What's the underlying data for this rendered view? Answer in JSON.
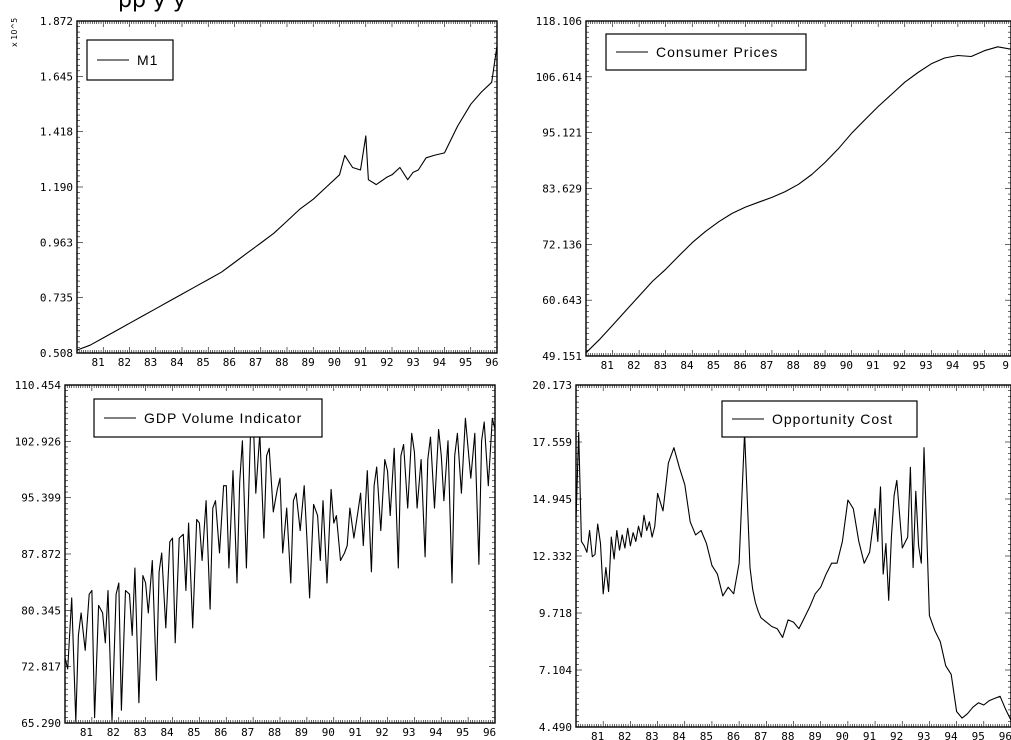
{
  "page": {
    "title_fragment": "pp        y           y"
  },
  "chart_data": [
    {
      "type": "line",
      "legend": "M1",
      "legend_position": "top-left",
      "scale_label": "x 10^5",
      "ylim": [
        0.508,
        1.872
      ],
      "ytick_labels": [
        "1.872",
        "1.645",
        "1.418",
        "1.190",
        "0.963",
        "0.735",
        "0.508"
      ],
      "xlim": [
        1980.0,
        1996.0
      ],
      "xtick_labels": [
        "81",
        "82",
        "83",
        "84",
        "85",
        "86",
        "87",
        "88",
        "89",
        "90",
        "91",
        "92",
        "93",
        "94",
        "95",
        "96"
      ],
      "series": [
        {
          "x": [
            1980.0,
            1980.5,
            1981.0,
            1981.5,
            1982.0,
            1982.5,
            1983.0,
            1983.5,
            1984.0,
            1984.5,
            1985.0,
            1985.5,
            1986.0,
            1986.5,
            1987.0,
            1987.5,
            1988.0,
            1988.5,
            1989.0,
            1989.5,
            1990.0,
            1990.2,
            1990.5,
            1990.8,
            1991.0,
            1991.1,
            1991.4,
            1991.8,
            1992.0,
            1992.3,
            1992.6,
            1992.8,
            1993.0,
            1993.3,
            1993.6,
            1994.0,
            1994.5,
            1995.0,
            1995.4,
            1995.8,
            1996.0
          ],
          "values": [
            0.52,
            0.54,
            0.57,
            0.6,
            0.63,
            0.66,
            0.69,
            0.72,
            0.75,
            0.78,
            0.81,
            0.84,
            0.88,
            0.92,
            0.96,
            1.0,
            1.05,
            1.1,
            1.14,
            1.19,
            1.24,
            1.32,
            1.27,
            1.26,
            1.4,
            1.22,
            1.2,
            1.23,
            1.24,
            1.27,
            1.22,
            1.25,
            1.26,
            1.31,
            1.32,
            1.33,
            1.44,
            1.53,
            1.58,
            1.62,
            1.77
          ]
        }
      ]
    },
    {
      "type": "line",
      "legend": "Consumer Prices",
      "legend_position": "top-right",
      "ylim": [
        49.151,
        118.106
      ],
      "ytick_labels": [
        "118.106",
        "106.614",
        "95.121",
        "83.629",
        "72.136",
        "60.643",
        "49.151"
      ],
      "xlim": [
        1980.0,
        1996.0
      ],
      "xtick_labels": [
        "81",
        "82",
        "83",
        "84",
        "85",
        "86",
        "87",
        "88",
        "89",
        "90",
        "91",
        "92",
        "93",
        "94",
        "95",
        "9"
      ],
      "series": [
        {
          "x": [
            1980.0,
            1980.5,
            1981.0,
            1981.5,
            1982.0,
            1982.5,
            1983.0,
            1983.5,
            1984.0,
            1984.5,
            1985.0,
            1985.5,
            1986.0,
            1986.5,
            1987.0,
            1987.5,
            1988.0,
            1988.5,
            1989.0,
            1989.5,
            1990.0,
            1990.5,
            1991.0,
            1991.5,
            1992.0,
            1992.5,
            1993.0,
            1993.5,
            1994.0,
            1994.5,
            1995.0,
            1995.5,
            1996.0
          ],
          "values": [
            49.8,
            52.5,
            55.5,
            58.5,
            61.5,
            64.5,
            67.0,
            69.8,
            72.5,
            74.8,
            76.8,
            78.5,
            79.8,
            80.8,
            81.8,
            83.0,
            84.5,
            86.5,
            89.0,
            91.8,
            95.0,
            97.8,
            100.5,
            103.0,
            105.5,
            107.5,
            109.3,
            110.5,
            111.0,
            110.8,
            112.0,
            112.8,
            112.3
          ]
        }
      ]
    },
    {
      "type": "line",
      "legend": "GDP Volume Indicator",
      "legend_position": "top-left",
      "ylim": [
        65.29,
        110.454
      ],
      "ytick_labels": [
        "110.454",
        "102.926",
        "95.399",
        "87.872",
        "80.345",
        "72.817",
        "65.290"
      ],
      "xlim": [
        1980.0,
        1996.0
      ],
      "xtick_labels": [
        "81",
        "82",
        "83",
        "84",
        "85",
        "86",
        "87",
        "88",
        "89",
        "90",
        "91",
        "92",
        "93",
        "94",
        "95",
        "96"
      ],
      "series": [
        {
          "x": [
            1980.0,
            1980.1,
            1980.25,
            1980.4,
            1980.5,
            1980.6,
            1980.75,
            1980.9,
            1981.0,
            1981.1,
            1981.25,
            1981.4,
            1981.5,
            1981.6,
            1981.75,
            1981.9,
            1982.0,
            1982.1,
            1982.25,
            1982.4,
            1982.5,
            1982.6,
            1982.75,
            1982.9,
            1983.0,
            1983.1,
            1983.25,
            1983.4,
            1983.5,
            1983.6,
            1983.75,
            1983.9,
            1984.0,
            1984.1,
            1984.25,
            1984.4,
            1984.5,
            1984.6,
            1984.75,
            1984.9,
            1985.0,
            1985.1,
            1985.25,
            1985.4,
            1985.5,
            1985.6,
            1985.75,
            1985.9,
            1986.0,
            1986.1,
            1986.25,
            1986.4,
            1986.5,
            1986.6,
            1986.75,
            1986.9,
            1987.0,
            1987.1,
            1987.25,
            1987.4,
            1987.5,
            1987.6,
            1987.75,
            1987.9,
            1988.0,
            1988.1,
            1988.25,
            1988.4,
            1988.5,
            1988.6,
            1988.75,
            1988.9,
            1989.0,
            1989.1,
            1989.25,
            1989.4,
            1989.5,
            1989.6,
            1989.75,
            1989.9,
            1990.0,
            1990.1,
            1990.25,
            1990.4,
            1990.5,
            1990.6,
            1990.75,
            1990.9,
            1991.0,
            1991.1,
            1991.25,
            1991.4,
            1991.5,
            1991.6,
            1991.75,
            1991.9,
            1992.0,
            1992.1,
            1992.25,
            1992.4,
            1992.5,
            1992.6,
            1992.75,
            1992.9,
            1993.0,
            1993.1,
            1993.25,
            1993.4,
            1993.5,
            1993.6,
            1993.75,
            1993.9,
            1994.0,
            1994.1,
            1994.25,
            1994.4,
            1994.5,
            1994.6,
            1994.75,
            1994.9,
            1995.0,
            1995.1,
            1995.25,
            1995.4,
            1995.5,
            1995.6,
            1995.75,
            1995.9,
            1996.0
          ],
          "values": [
            74.0,
            72.5,
            82.0,
            65.5,
            77.0,
            80.0,
            75.0,
            82.5,
            83.0,
            66.0,
            81.0,
            80.0,
            76.0,
            83.0,
            65.5,
            82.5,
            84.0,
            67.0,
            83.0,
            82.5,
            77.0,
            86.0,
            68.0,
            85.0,
            84.0,
            80.0,
            87.0,
            71.0,
            85.5,
            88.0,
            78.0,
            89.5,
            90.0,
            76.0,
            90.0,
            90.5,
            83.0,
            92.0,
            78.0,
            92.5,
            92.0,
            87.0,
            95.0,
            80.5,
            94.0,
            95.0,
            88.0,
            97.0,
            97.0,
            86.0,
            99.0,
            84.0,
            97.5,
            103.0,
            86.0,
            103.5,
            106.5,
            96.0,
            104.0,
            90.0,
            101.0,
            102.0,
            93.5,
            96.5,
            98.0,
            88.0,
            94.0,
            84.0,
            95.0,
            96.0,
            91.0,
            97.0,
            90.0,
            82.0,
            94.5,
            93.0,
            87.0,
            95.0,
            84.0,
            96.5,
            92.0,
            93.0,
            87.0,
            88.0,
            89.0,
            94.0,
            90.0,
            93.5,
            96.0,
            89.0,
            99.0,
            85.5,
            97.0,
            99.5,
            91.0,
            100.5,
            99.0,
            93.0,
            102.0,
            86.0,
            101.0,
            102.5,
            94.0,
            104.0,
            101.5,
            94.0,
            100.5,
            87.5,
            100.5,
            103.5,
            94.0,
            104.5,
            101.0,
            95.0,
            103.0,
            84.0,
            101.0,
            104.0,
            96.0,
            106.0,
            102.0,
            98.0,
            104.0,
            86.5,
            103.0,
            105.5,
            97.0,
            106.0,
            104.5
          ]
        }
      ]
    },
    {
      "type": "line",
      "legend": "Opportunity Cost",
      "legend_position": "top-right",
      "ylim": [
        4.49,
        20.173
      ],
      "ytick_labels": [
        "20.173",
        "17.559",
        "14.945",
        "12.332",
        "9.718",
        "7.104",
        "4.490"
      ],
      "xlim": [
        1980.0,
        1996.0
      ],
      "xtick_labels": [
        "81",
        "82",
        "83",
        "84",
        "85",
        "86",
        "87",
        "88",
        "89",
        "90",
        "91",
        "92",
        "93",
        "94",
        "95",
        "96"
      ],
      "series": [
        {
          "x": [
            1980.0,
            1980.1,
            1980.2,
            1980.3,
            1980.4,
            1980.5,
            1980.6,
            1980.7,
            1980.8,
            1980.9,
            1981.0,
            1981.1,
            1981.2,
            1981.3,
            1981.4,
            1981.5,
            1981.6,
            1981.7,
            1981.8,
            1981.9,
            1982.0,
            1982.1,
            1982.2,
            1982.3,
            1982.4,
            1982.5,
            1982.6,
            1982.7,
            1982.8,
            1982.9,
            1983.0,
            1983.2,
            1983.4,
            1983.6,
            1983.8,
            1984.0,
            1984.2,
            1984.4,
            1984.6,
            1984.8,
            1985.0,
            1985.2,
            1985.4,
            1985.6,
            1985.8,
            1986.0,
            1986.2,
            1986.4,
            1986.5,
            1986.6,
            1986.7,
            1986.8,
            1987.0,
            1987.2,
            1987.4,
            1987.6,
            1987.8,
            1988.0,
            1988.2,
            1988.4,
            1988.6,
            1988.8,
            1989.0,
            1989.2,
            1989.4,
            1989.6,
            1989.8,
            1990.0,
            1990.2,
            1990.4,
            1990.6,
            1990.8,
            1991.0,
            1991.1,
            1991.2,
            1991.3,
            1991.4,
            1991.5,
            1991.6,
            1991.7,
            1991.8,
            1992.0,
            1992.2,
            1992.3,
            1992.4,
            1992.5,
            1992.6,
            1992.7,
            1992.8,
            1993.0,
            1993.2,
            1993.4,
            1993.6,
            1993.8,
            1994.0,
            1994.2,
            1994.4,
            1994.6,
            1994.8,
            1995.0,
            1995.2,
            1995.4,
            1995.6,
            1995.8,
            1996.0
          ],
          "values": [
            14.0,
            18.0,
            13.0,
            12.8,
            12.5,
            13.5,
            12.3,
            12.4,
            13.8,
            12.9,
            10.6,
            11.8,
            10.7,
            13.2,
            12.2,
            13.5,
            12.6,
            13.3,
            12.7,
            13.6,
            12.8,
            13.4,
            13.0,
            13.7,
            13.2,
            14.2,
            13.5,
            13.9,
            13.2,
            13.7,
            15.2,
            14.4,
            16.6,
            17.3,
            16.4,
            15.6,
            13.9,
            13.3,
            13.5,
            12.9,
            11.9,
            11.5,
            10.5,
            10.9,
            10.6,
            12.0,
            18.0,
            11.8,
            10.8,
            10.2,
            9.8,
            9.5,
            9.3,
            9.1,
            9.0,
            8.6,
            9.4,
            9.3,
            9.0,
            9.5,
            10.0,
            10.6,
            10.9,
            11.5,
            12.0,
            12.0,
            13.0,
            14.9,
            14.5,
            13.0,
            12.0,
            12.5,
            14.5,
            13.0,
            15.5,
            11.5,
            12.9,
            10.3,
            13.2,
            15.1,
            15.8,
            12.7,
            13.2,
            16.4,
            11.8,
            15.3,
            12.8,
            12.0,
            17.3,
            9.6,
            8.9,
            8.4,
            7.3,
            6.9,
            5.2,
            4.9,
            5.1,
            5.4,
            5.6,
            5.5,
            5.7,
            5.8,
            5.9,
            5.3,
            4.8
          ]
        }
      ]
    }
  ]
}
